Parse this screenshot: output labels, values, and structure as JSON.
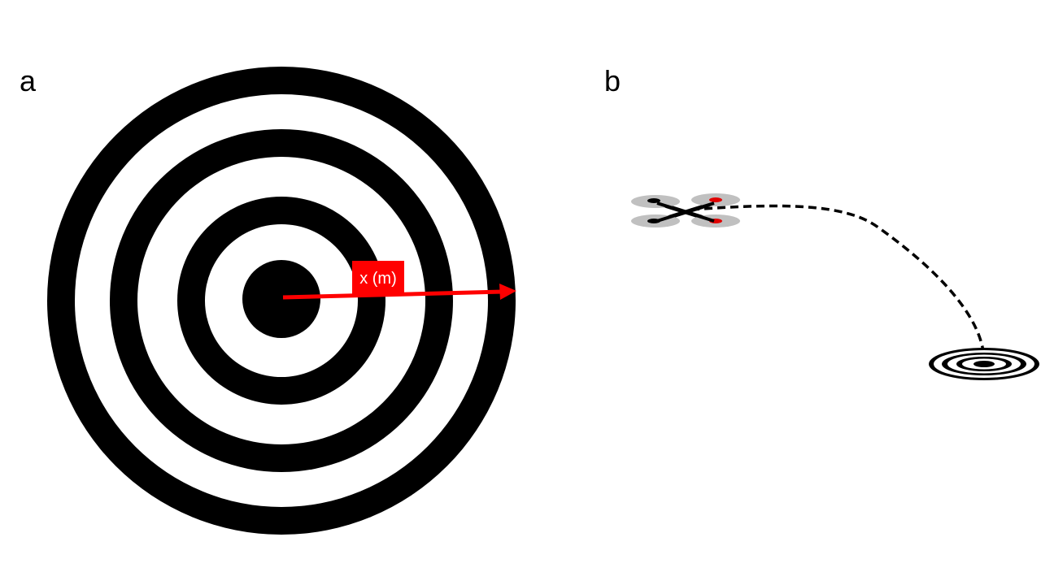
{
  "panels": {
    "a": {
      "label": "a",
      "arrow_label": "x (m)"
    },
    "b": {
      "label": "b"
    }
  },
  "colors": {
    "ring": "#000000",
    "background": "#ffffff",
    "arrow": "#ff0000",
    "rotor": "#c0c0c0",
    "rotor_hub_front": "#e00000",
    "rotor_hub_rear": "#000000"
  },
  "icons": [
    "landing-target",
    "drone",
    "flight-path"
  ]
}
